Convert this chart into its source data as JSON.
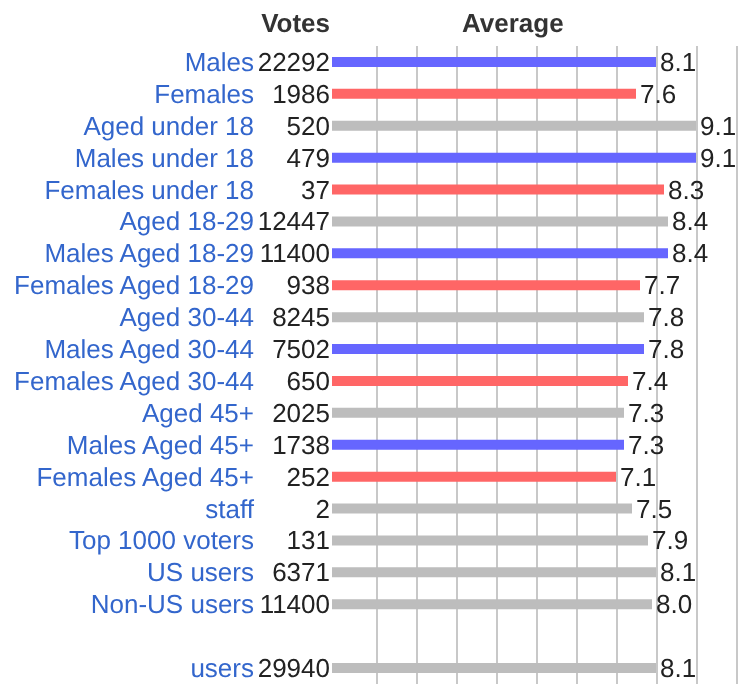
{
  "chart_data": {
    "type": "bar",
    "orientation": "horizontal",
    "categories": [
      "Males",
      "Females",
      "Aged under 18",
      "Males under 18",
      "Females under 18",
      "Aged 18-29",
      "Males Aged 18-29",
      "Females Aged 18-29",
      "Aged 30-44",
      "Males Aged 30-44",
      "Females Aged 30-44",
      "Aged 45+",
      "Males Aged 45+",
      "Females Aged 45+",
      "staff",
      "Top 1000 voters",
      "US users",
      "Non-US users",
      null,
      "users"
    ],
    "series": [
      {
        "name": "Average",
        "values": [
          8.1,
          7.6,
          9.1,
          9.1,
          8.3,
          8.4,
          8.4,
          7.7,
          7.8,
          7.8,
          7.4,
          7.3,
          7.3,
          7.1,
          7.5,
          7.9,
          8.1,
          8.0,
          null,
          8.1
        ],
        "value_labels": [
          "8.1",
          "7.6",
          "9.1",
          "9.1",
          "8.3",
          "8.4",
          "8.4",
          "7.7",
          "7.8",
          "7.8",
          "7.4",
          "7.3",
          "7.3",
          "7.1",
          "7.5",
          "7.9",
          "8.1",
          "8.0",
          null,
          "8.1"
        ],
        "colors": [
          "#6666ff",
          "#ff6666",
          "#bdbdbd",
          "#6666ff",
          "#ff6666",
          "#bdbdbd",
          "#6666ff",
          "#ff6666",
          "#bdbdbd",
          "#6666ff",
          "#ff6666",
          "#bdbdbd",
          "#6666ff",
          "#ff6666",
          "#bdbdbd",
          "#bdbdbd",
          "#bdbdbd",
          "#bdbdbd",
          null,
          "#bdbdbd"
        ]
      }
    ],
    "annotations": [
      "Votes",
      "22292",
      "1986",
      "520",
      "479",
      "37",
      "12447",
      "11400",
      "938",
      "8245",
      "7502",
      "650",
      "2025",
      "1738",
      "252",
      "2",
      "131",
      "6371",
      "11400",
      "29940"
    ],
    "xlim": [
      0,
      10.1
    ],
    "xticks": [
      {
        "value": 1.1,
        "label": null
      },
      {
        "value": 2.1,
        "label": null
      },
      {
        "value": 3.1,
        "label": null
      },
      {
        "value": 4.1,
        "label": null
      },
      {
        "value": 5.1,
        "label": null
      },
      {
        "value": 6.1,
        "label": null
      },
      {
        "value": 7.1,
        "label": null
      },
      {
        "value": 8.1,
        "label": null
      },
      {
        "value": 9.1,
        "label": null
      },
      {
        "value": 10.1,
        "label": null
      }
    ],
    "grid": "x",
    "legend": false
  }
}
